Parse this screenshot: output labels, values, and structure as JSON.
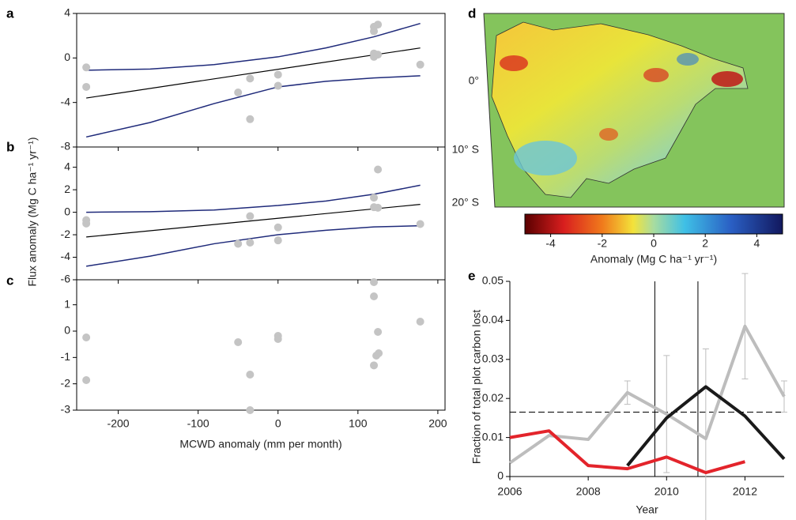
{
  "chart_data": [
    {
      "type": "scatter",
      "panel": "a",
      "ylim": [
        -8,
        4
      ],
      "yticks": [
        -8,
        -4,
        0,
        4
      ],
      "points": {
        "color": "#c4c4c4",
        "x": [
          -240,
          -240,
          -50,
          -35,
          -35,
          0,
          0,
          120,
          120,
          120,
          120,
          125,
          125,
          178
        ],
        "y": [
          -0.85,
          -2.6,
          -3.1,
          -1.85,
          -5.5,
          -1.5,
          -2.5,
          2.8,
          2.4,
          0.4,
          0.1,
          3.0,
          0.3,
          -0.6
        ]
      },
      "fit": {
        "color": "#000000",
        "x": [
          -240,
          178
        ],
        "y": [
          -3.6,
          0.9
        ]
      },
      "bands": [
        {
          "color": "#1f2a7a",
          "x": [
            -240,
            -160,
            -80,
            0,
            60,
            120,
            178
          ],
          "y": [
            -1.1,
            -1.0,
            -0.6,
            0.1,
            0.9,
            1.9,
            3.1
          ]
        },
        {
          "color": "#1f2a7a",
          "x": [
            -240,
            -160,
            -80,
            0,
            60,
            120,
            178
          ],
          "y": [
            -7.1,
            -5.8,
            -4.1,
            -2.6,
            -2.1,
            -1.8,
            -1.6
          ]
        }
      ]
    },
    {
      "type": "scatter",
      "panel": "b",
      "ylim": [
        -6,
        5.8
      ],
      "yticks": [
        -6,
        -4,
        -2,
        0,
        2,
        4
      ],
      "ylabel": "Flux anomaly (Mg C ha⁻¹ yr⁻¹)",
      "points": {
        "color": "#c4c4c4",
        "x": [
          -240,
          -240,
          -50,
          -35,
          -35,
          0,
          0,
          120,
          120,
          125,
          125,
          178
        ],
        "y": [
          -0.7,
          -1.0,
          -2.8,
          -0.35,
          -2.7,
          -1.35,
          -2.5,
          1.3,
          0.45,
          3.8,
          0.4,
          -1.05
        ]
      },
      "fit": {
        "color": "#000000",
        "x": [
          -240,
          178
        ],
        "y": [
          -2.2,
          0.7
        ]
      },
      "bands": [
        {
          "color": "#1f2a7a",
          "x": [
            -240,
            -160,
            -80,
            0,
            60,
            120,
            178
          ],
          "y": [
            0,
            0.05,
            0.2,
            0.6,
            1.0,
            1.6,
            2.4
          ]
        },
        {
          "color": "#1f2a7a",
          "x": [
            -240,
            -160,
            -80,
            0,
            60,
            120,
            178
          ],
          "y": [
            -4.8,
            -3.9,
            -2.8,
            -2.0,
            -1.6,
            -1.3,
            -1.2
          ]
        }
      ]
    },
    {
      "type": "scatter",
      "panel": "c",
      "ylim": [
        -3,
        1.95
      ],
      "yticks": [
        -3,
        -2,
        -1,
        0,
        1
      ],
      "xlim": [
        -252,
        209
      ],
      "xticks": [
        -200,
        -100,
        0,
        100,
        200
      ],
      "xlabel": "MCWD anomaly (mm per month)",
      "points": {
        "color": "#c4c4c4",
        "x": [
          -240,
          -240,
          -50,
          -35,
          -35,
          0,
          0,
          120,
          120,
          120,
          123,
          125,
          126,
          178
        ],
        "y": [
          -0.24,
          -1.86,
          -0.42,
          -1.65,
          -3,
          -0.18,
          -0.3,
          1.86,
          1.32,
          -1.3,
          -0.93,
          -0.03,
          -0.84,
          0.36
        ]
      }
    },
    {
      "type": "map",
      "panel": "d",
      "lat_labels": [
        "0°",
        "10° S",
        "20° S"
      ],
      "colorbar": {
        "lim": [
          -5,
          5
        ],
        "ticks": [
          -4,
          -2,
          0,
          2,
          4
        ],
        "label": "Anomaly (Mg C ha⁻¹ yr⁻¹)"
      }
    },
    {
      "type": "line",
      "panel": "e",
      "xlim": [
        2006,
        2013
      ],
      "xticks": [
        2006,
        2008,
        2010,
        2012
      ],
      "ylim": [
        0,
        0.05
      ],
      "yticks": [
        0,
        0.01,
        0.02,
        0.03,
        0.04,
        0.05
      ],
      "xlabel": "Year",
      "ylabel": "Fraction of total plot carbon lost",
      "hline": 0.0165,
      "vlines": [
        2009.7,
        2010.8
      ],
      "series": [
        {
          "color": "#bdbdbd",
          "x": [
            2006,
            2007,
            2008,
            2009,
            2010,
            2011,
            2012,
            2013
          ],
          "values": [
            0.0035,
            0.0105,
            0.0095,
            0.0215,
            0.016,
            0.0097,
            0.0385,
            0.0205
          ],
          "errors": [
            null,
            null,
            null,
            0.003,
            0.015,
            0.023,
            0.0135,
            0.004
          ]
        },
        {
          "color": "#e3242b",
          "x": [
            2006,
            2007,
            2008,
            2009,
            2010,
            2011,
            2012
          ],
          "values": [
            0.01,
            0.0117,
            0.0028,
            0.002,
            0.005,
            0.001,
            0.0038
          ]
        },
        {
          "color": "#1a1a1a",
          "x": [
            2009,
            2010,
            2011,
            2012,
            2013
          ],
          "values": [
            0.0028,
            0.015,
            0.023,
            0.0155,
            0.0045
          ]
        }
      ]
    }
  ]
}
